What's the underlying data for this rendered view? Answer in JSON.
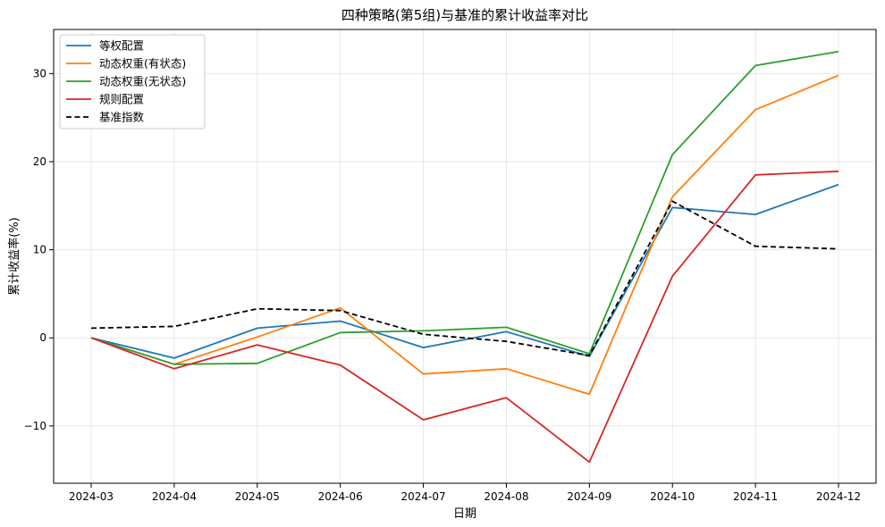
{
  "chart_data": {
    "type": "line",
    "title": "四种策略(第5组)与基准的累计收益率对比",
    "xlabel": "日期",
    "ylabel": "累计收益率(%)",
    "x": [
      "2024-03",
      "2024-04",
      "2024-05",
      "2024-06",
      "2024-07",
      "2024-08",
      "2024-09",
      "2024-10",
      "2024-11",
      "2024-12"
    ],
    "ylim": [
      -16.5,
      35
    ],
    "yticks": [
      -10,
      0,
      10,
      20,
      30
    ],
    "grid": true,
    "legend_position": "upper-left",
    "series": [
      {
        "name": "等权配置",
        "color": "#1f77b4",
        "dash": "solid",
        "values": [
          0.0,
          -2.3,
          1.1,
          1.9,
          -1.1,
          0.7,
          -2.1,
          14.8,
          14.0,
          17.4
        ]
      },
      {
        "name": "动态权重(有状态)",
        "color": "#ff7f0e",
        "dash": "solid",
        "values": [
          0.0,
          -3.0,
          0.1,
          3.4,
          -4.1,
          -3.5,
          -6.4,
          16.0,
          25.9,
          29.8
        ]
      },
      {
        "name": "动态权重(无状态)",
        "color": "#2ca02c",
        "dash": "solid",
        "values": [
          0.0,
          -3.0,
          -2.9,
          0.6,
          0.8,
          1.2,
          -1.8,
          20.8,
          30.9,
          32.5
        ]
      },
      {
        "name": "规则配置",
        "color": "#d62728",
        "dash": "solid",
        "values": [
          0.0,
          -3.5,
          -0.8,
          -3.1,
          -9.3,
          -6.8,
          -14.1,
          7.0,
          18.5,
          18.9
        ]
      },
      {
        "name": "基准指数",
        "color": "#000000",
        "dash": "dashed",
        "values": [
          1.1,
          1.3,
          3.3,
          3.1,
          0.4,
          -0.4,
          -2.0,
          15.5,
          10.4,
          10.1
        ]
      }
    ]
  }
}
